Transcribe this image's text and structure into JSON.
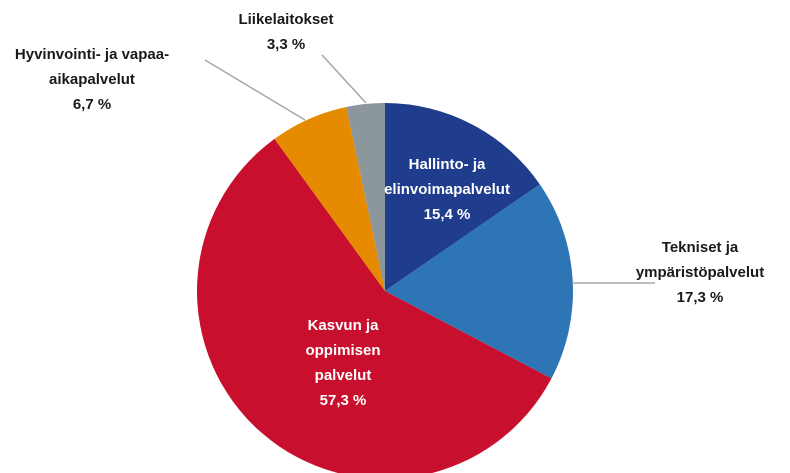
{
  "chart_data": {
    "type": "pie",
    "categories": [
      "Hallinto- ja\nelinvoimapalvelut",
      "Tekniset ja\nympäristöpalvelut",
      "Kasvun ja\noppimisen\npalvelut",
      "Hyvinvointi- ja vapaa-\naikapalvelut",
      "Liikelaitokset"
    ],
    "values": [
      15.4,
      17.3,
      57.3,
      6.7,
      3.3
    ],
    "value_labels": [
      "15,4 %",
      "17,3 %",
      "57,3 %",
      "6,7 %",
      "3,3 %"
    ],
    "colors": [
      "#1f3d8c",
      "#2e75b6",
      "#c8102e",
      "#e68a00",
      "#8c979c"
    ]
  }
}
